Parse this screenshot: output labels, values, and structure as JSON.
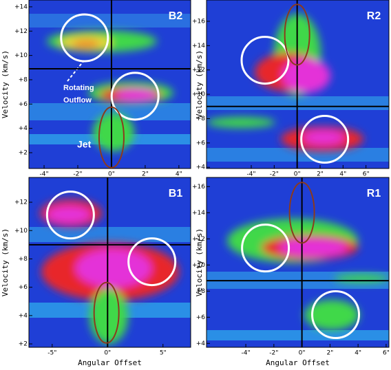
{
  "chart_data": [
    {
      "type": "heatmap",
      "title": "B2",
      "ylabel": "Velocity (km/s)",
      "xlim": [
        -4.9,
        4.7
      ],
      "ylim": [
        0.7,
        14.56
      ],
      "xticks": [
        {
          "value": -4,
          "label": "-4\""
        },
        {
          "value": -2,
          "label": "-2\""
        },
        {
          "value": 0,
          "label": "0\""
        },
        {
          "value": 2,
          "label": "2\""
        },
        {
          "value": 4,
          "label": "4\""
        }
      ],
      "yticks": [
        {
          "value": 2,
          "label": "+2"
        },
        {
          "value": 4,
          "label": "+4"
        },
        {
          "value": 6,
          "label": "+6"
        },
        {
          "value": 8,
          "label": "+8"
        },
        {
          "value": 10,
          "label": "+10"
        },
        {
          "value": 12,
          "label": "+12"
        },
        {
          "value": 14,
          "label": "+14"
        }
      ],
      "vline": 0,
      "hline": 8.9,
      "markers": [
        {
          "x": -1.6,
          "y": 11.45,
          "color": "#ffffff"
        },
        {
          "x": 1.4,
          "y": 6.65,
          "color": "#ffffff"
        },
        {
          "x": 0,
          "y": 3.26,
          "color": "#8b3a1e"
        }
      ],
      "annotations": [
        "Rotating",
        "Outflow",
        "Jet"
      ]
    },
    {
      "type": "heatmap",
      "title": "R2",
      "ylabel": "Velocity (km/s)",
      "xlim": [
        -7.9,
        8.0
      ],
      "ylim": [
        3.9,
        17.75
      ],
      "xticks": [
        {
          "value": -4,
          "label": "-4\""
        },
        {
          "value": -2,
          "label": "-2\""
        },
        {
          "value": 0,
          "label": "0\""
        },
        {
          "value": 2,
          "label": "2\""
        },
        {
          "value": 4,
          "label": "4\""
        },
        {
          "value": 6,
          "label": "6\""
        }
      ],
      "yticks": [
        {
          "value": 4,
          "label": "+4"
        },
        {
          "value": 6,
          "label": "+6"
        },
        {
          "value": 8,
          "label": "+8"
        },
        {
          "value": 10,
          "label": "+10"
        },
        {
          "value": 12,
          "label": "+12"
        },
        {
          "value": 14,
          "label": "+14"
        },
        {
          "value": 16,
          "label": "+16"
        }
      ],
      "vline": 0,
      "hline": 9.0,
      "markers": [
        {
          "x": -2.8,
          "y": 12.8,
          "color": "#ffffff"
        },
        {
          "x": 2.4,
          "y": 6.3,
          "color": "#ffffff"
        },
        {
          "x": 0,
          "y": 14.9,
          "color": "#8b3a1e"
        }
      ]
    },
    {
      "type": "heatmap",
      "title": "B1",
      "ylabel": "Velocity (km/s)",
      "xlabel": "Angular Offset",
      "xlim": [
        -7.1,
        7.5
      ],
      "ylim": [
        1.76,
        13.75
      ],
      "xticks": [
        {
          "value": -5,
          "label": "-5\""
        },
        {
          "value": 0,
          "label": "0\""
        },
        {
          "value": 5,
          "label": "5\""
        }
      ],
      "yticks": [
        {
          "value": 2,
          "label": "+2"
        },
        {
          "value": 4,
          "label": "+4"
        },
        {
          "value": 6,
          "label": "+6"
        },
        {
          "value": 8,
          "label": "+8"
        },
        {
          "value": 10,
          "label": "+10"
        },
        {
          "value": 12,
          "label": "+12"
        }
      ],
      "vline": 0,
      "hline": 9.0,
      "markers": [
        {
          "x": -3.35,
          "y": 11.1,
          "color": "#ffffff"
        },
        {
          "x": 4.0,
          "y": 7.8,
          "color": "#ffffff"
        },
        {
          "x": -0.1,
          "y": 4.2,
          "color": "#8b3a1e"
        }
      ]
    },
    {
      "type": "heatmap",
      "title": "R1",
      "ylabel": "Velocity (km/s)",
      "xlabel": "Angular Offset",
      "xlim": [
        -6.8,
        6.2
      ],
      "ylim": [
        3.7,
        16.7
      ],
      "xticks": [
        {
          "value": -4,
          "label": "-4\""
        },
        {
          "value": -2,
          "label": "-2\""
        },
        {
          "value": 0,
          "label": "0\""
        },
        {
          "value": 2,
          "label": "2\""
        },
        {
          "value": 4,
          "label": "4\""
        },
        {
          "value": 6,
          "label": "6\""
        }
      ],
      "yticks": [
        {
          "value": 4,
          "label": "+4"
        },
        {
          "value": 6,
          "label": "+6"
        },
        {
          "value": 8,
          "label": "+8"
        },
        {
          "value": 10,
          "label": "+10"
        },
        {
          "value": 12,
          "label": "+12"
        },
        {
          "value": 14,
          "label": "+14"
        },
        {
          "value": 16,
          "label": "+16"
        }
      ],
      "vline": 0,
      "hline": 8.8,
      "markers": [
        {
          "x": -2.6,
          "y": 11.3,
          "color": "#ffffff"
        },
        {
          "x": 2.4,
          "y": 6.2,
          "color": "#ffffff"
        },
        {
          "x": 0,
          "y": 14.0,
          "color": "#8b3a1e"
        }
      ]
    }
  ]
}
